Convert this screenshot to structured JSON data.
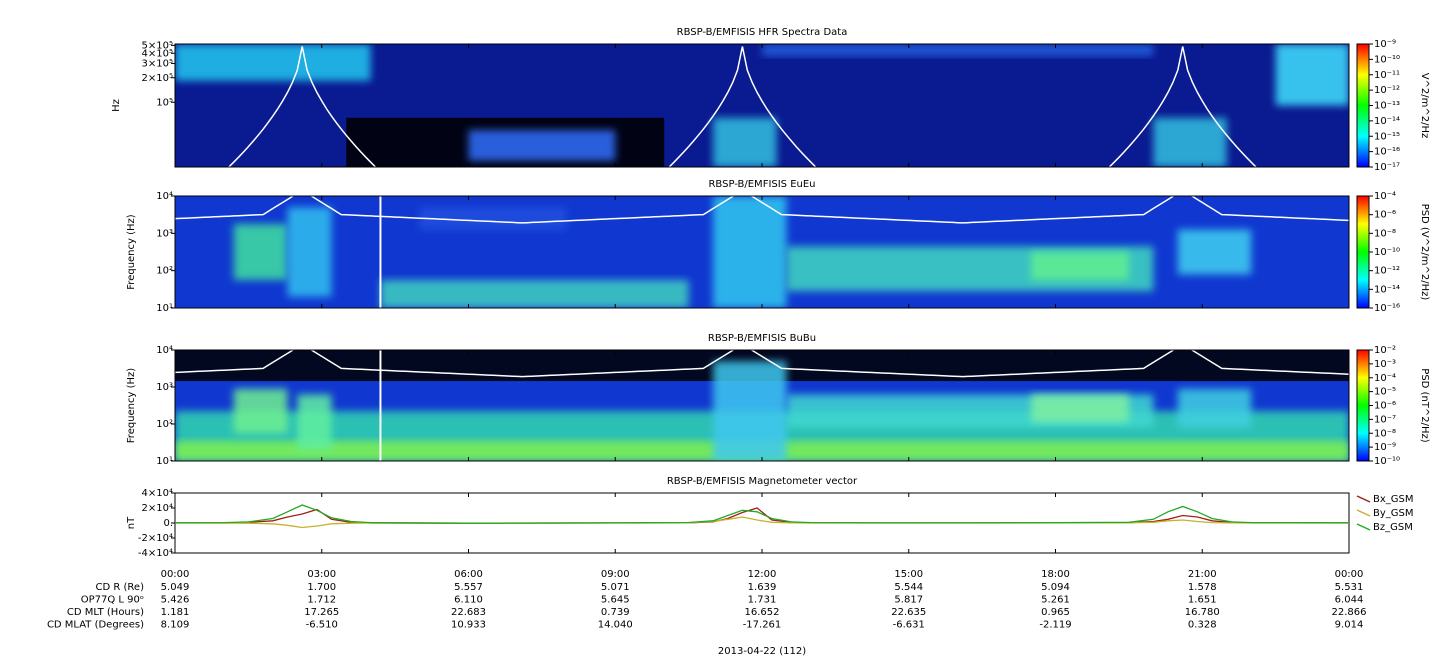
{
  "chart_data": [
    {
      "type": "spectrogram",
      "title": "RBSP-B/EMFISIS  HFR Spectra Data",
      "y_label": "Hz",
      "log_y": true,
      "ylim": [
        16000,
        520000
      ],
      "yticks": [
        {
          "value": 100000,
          "label": "10⁵"
        },
        {
          "value": 200000,
          "label": "2×10⁵"
        },
        {
          "value": 300000,
          "label": "3×10⁵"
        },
        {
          "value": 400000,
          "label": "4×10⁵"
        },
        {
          "value": 500000,
          "label": "5×10⁵"
        }
      ],
      "colorbar": {
        "label": "V^2/m^2/Hz",
        "lim": [
          1e-17,
          1e-09
        ],
        "colors": [
          "#ff0000",
          "#ffff00",
          "#00ff00",
          "#00ffff",
          "#0000ff"
        ],
        "ticks": [
          {
            "value": 1e-09,
            "label": "10⁻⁹"
          },
          {
            "value": 1e-10,
            "label": "10⁻¹⁰"
          },
          {
            "value": 1e-11,
            "label": "10⁻¹¹"
          },
          {
            "value": 1e-12,
            "label": "10⁻¹²"
          },
          {
            "value": 1e-13,
            "label": "10⁻¹³"
          },
          {
            "value": 1e-14,
            "label": "10⁻¹⁴"
          },
          {
            "value": 1e-15,
            "label": "10⁻¹⁵"
          },
          {
            "value": 1e-16,
            "label": "10⁻¹⁶"
          },
          {
            "value": 1e-17,
            "label": "10⁻¹⁷"
          }
        ]
      }
    },
    {
      "type": "spectrogram",
      "title": "RBSP-B/EMFISIS  EuEu",
      "y_label": "Frequency (Hz)",
      "log_y": true,
      "ylim": [
        10,
        10000
      ],
      "yticks": [
        {
          "value": 10,
          "label": "10¹"
        },
        {
          "value": 100,
          "label": "10²"
        },
        {
          "value": 1000,
          "label": "10³"
        },
        {
          "value": 10000,
          "label": "10⁴"
        }
      ],
      "colorbar": {
        "label": "PSD (V^2/m^2/Hz)",
        "lim": [
          1e-16,
          0.0001
        ],
        "colors": [
          "#ff0000",
          "#ffff00",
          "#00ff00",
          "#00ffff",
          "#0000ff"
        ],
        "ticks": [
          {
            "value": 0.0001,
            "label": "10⁻⁴"
          },
          {
            "value": 1e-06,
            "label": "10⁻⁶"
          },
          {
            "value": 1e-08,
            "label": "10⁻⁸"
          },
          {
            "value": 1e-10,
            "label": "10⁻¹⁰"
          },
          {
            "value": 1e-12,
            "label": "10⁻¹²"
          },
          {
            "value": 1e-14,
            "label": "10⁻¹⁴"
          },
          {
            "value": 1e-16,
            "label": "10⁻¹⁶"
          }
        ]
      }
    },
    {
      "type": "spectrogram",
      "title": "RBSP-B/EMFISIS  BuBu",
      "y_label": "Frequency (Hz)",
      "log_y": true,
      "ylim": [
        10,
        10000
      ],
      "yticks": [
        {
          "value": 10,
          "label": "10¹"
        },
        {
          "value": 100,
          "label": "10²"
        },
        {
          "value": 1000,
          "label": "10³"
        },
        {
          "value": 10000,
          "label": "10⁴"
        }
      ],
      "colorbar": {
        "label": "PSD (nT^2/Hz)",
        "lim": [
          1e-10,
          0.01
        ],
        "colors": [
          "#ff0000",
          "#ffff00",
          "#00ff00",
          "#00ffff",
          "#0000ff"
        ],
        "ticks": [
          {
            "value": 0.01,
            "label": "10⁻²"
          },
          {
            "value": 0.001,
            "label": "10⁻³"
          },
          {
            "value": 0.0001,
            "label": "10⁻⁴"
          },
          {
            "value": 1e-05,
            "label": "10⁻⁵"
          },
          {
            "value": 1e-06,
            "label": "10⁻⁶"
          },
          {
            "value": 1e-07,
            "label": "10⁻⁷"
          },
          {
            "value": 1e-08,
            "label": "10⁻⁸"
          },
          {
            "value": 1e-09,
            "label": "10⁻⁹"
          },
          {
            "value": 1e-10,
            "label": "10⁻¹⁰"
          }
        ]
      }
    },
    {
      "type": "line",
      "title": "RBSP-B/EMFISIS  Magnetometer vector",
      "y_label": "nT",
      "legend": "outside-right",
      "ylim": [
        -40000,
        40000
      ],
      "yticks": [
        {
          "value": -40000,
          "label": "-4×10⁴"
        },
        {
          "value": -20000,
          "label": "-2×10⁴"
        },
        {
          "value": 0,
          "label": "0."
        },
        {
          "value": 20000,
          "label": "2×10⁴"
        },
        {
          "value": 40000,
          "label": "4×10⁴"
        }
      ],
      "xlim": [
        0,
        24
      ],
      "xticks": [
        {
          "value": 0,
          "label": "00:00"
        },
        {
          "value": 3,
          "label": "03:00"
        },
        {
          "value": 6,
          "label": "06:00"
        },
        {
          "value": 9,
          "label": "09:00"
        },
        {
          "value": 12,
          "label": "12:00"
        },
        {
          "value": 15,
          "label": "15:00"
        },
        {
          "value": 18,
          "label": "18:00"
        },
        {
          "value": 21,
          "label": "21:00"
        },
        {
          "value": 24,
          "label": "00:00"
        }
      ],
      "x": [
        0,
        1,
        1.5,
        2,
        2.3,
        2.6,
        2.9,
        3.2,
        3.6,
        4,
        6,
        9,
        10.5,
        11,
        11.3,
        11.6,
        11.9,
        12.2,
        12.6,
        13,
        15,
        18,
        19.5,
        20,
        20.3,
        20.6,
        20.9,
        21.2,
        21.6,
        22,
        24
      ],
      "series": [
        {
          "name": "Bx_GSM",
          "color": "#a02020",
          "values": [
            100,
            200,
            800,
            3000,
            8000,
            12000,
            18000,
            5000,
            800,
            0,
            -300,
            100,
            300,
            1500,
            6000,
            14000,
            20000,
            4000,
            800,
            200,
            100,
            200,
            500,
            2000,
            5000,
            10000,
            8000,
            3000,
            600,
            200,
            100
          ]
        },
        {
          "name": "By_GSM",
          "color": "#c8b030",
          "values": [
            0,
            -100,
            -300,
            -1000,
            -3000,
            -6000,
            -4000,
            -1000,
            -300,
            0,
            -200,
            0,
            200,
            2000,
            5000,
            8000,
            4000,
            1000,
            200,
            0,
            0,
            100,
            300,
            1000,
            3000,
            4000,
            2000,
            500,
            100,
            0,
            0
          ]
        },
        {
          "name": "Bz_GSM",
          "color": "#22aa22",
          "values": [
            300,
            500,
            1500,
            6000,
            15000,
            24000,
            17000,
            7000,
            2000,
            500,
            -300,
            200,
            600,
            3000,
            10000,
            17000,
            15000,
            6000,
            1500,
            500,
            200,
            400,
            1000,
            5000,
            15000,
            22000,
            15000,
            6000,
            1500,
            500,
            300
          ]
        }
      ]
    }
  ],
  "ephemeris": {
    "date": "2013-04-22 (112)",
    "rows": [
      {
        "label": "CD R (Re)",
        "values": [
          "5.049",
          "1.700",
          "5.557",
          "5.071",
          "1.639",
          "5.544",
          "5.094",
          "1.578",
          "5.531"
        ]
      },
      {
        "label": "OP77Q L 90ᵒ",
        "values": [
          "5.426",
          "1.712",
          "6.110",
          "5.645",
          "1.731",
          "5.817",
          "5.261",
          "1.651",
          "6.044"
        ]
      },
      {
        "label": "CD MLT (Hours)",
        "values": [
          "1.181",
          "17.265",
          "22.683",
          "0.739",
          "16.652",
          "22.635",
          "0.965",
          "16.780",
          "22.866"
        ]
      },
      {
        "label": "CD MLAT (Degrees)",
        "values": [
          "8.109",
          "-6.510",
          "10.933",
          "14.040",
          "-17.261",
          "-6.631",
          "-2.119",
          "0.328",
          "9.014"
        ]
      }
    ]
  }
}
